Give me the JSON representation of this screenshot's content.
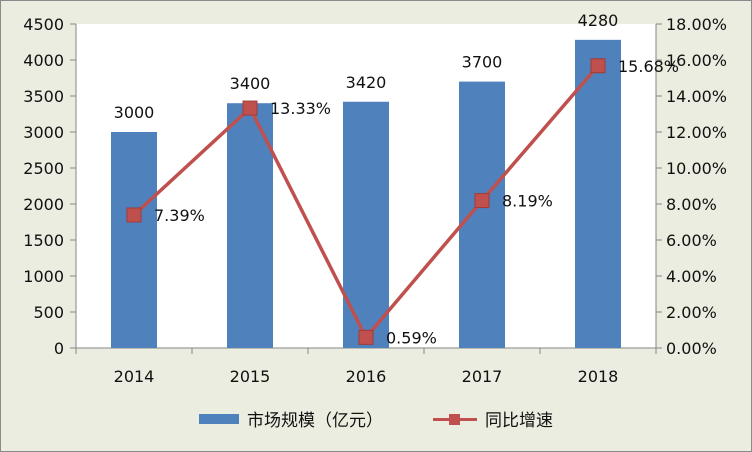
{
  "chart_data": {
    "type": "bar+line",
    "categories": [
      "2014",
      "2015",
      "2016",
      "2017",
      "2018"
    ],
    "series": [
      {
        "name": "市场规模（亿元）",
        "type": "bar",
        "axis": "left",
        "values": [
          3000,
          3400,
          3420,
          3700,
          4280
        ],
        "labels": [
          "3000",
          "3400",
          "3420",
          "3700",
          "4280"
        ],
        "color": "#4F81BD"
      },
      {
        "name": "同比增速",
        "type": "line",
        "axis": "right",
        "values": [
          7.39,
          13.33,
          0.59,
          8.19,
          15.68
        ],
        "labels": [
          "7.39%",
          "13.33%",
          "0.59%",
          "8.19%",
          "15.68%"
        ],
        "color": "#C0504D"
      }
    ],
    "ylim_left": [
      0,
      4500
    ],
    "yticks_left": [
      "0",
      "500",
      "1000",
      "1500",
      "2000",
      "2500",
      "3000",
      "3500",
      "4000",
      "4500"
    ],
    "ylim_right": [
      0,
      18
    ],
    "yticks_right": [
      "0.00%",
      "2.00%",
      "4.00%",
      "6.00%",
      "8.00%",
      "10.00%",
      "12.00%",
      "14.00%",
      "16.00%",
      "18.00%"
    ],
    "grid": false,
    "legend_position": "bottom"
  }
}
